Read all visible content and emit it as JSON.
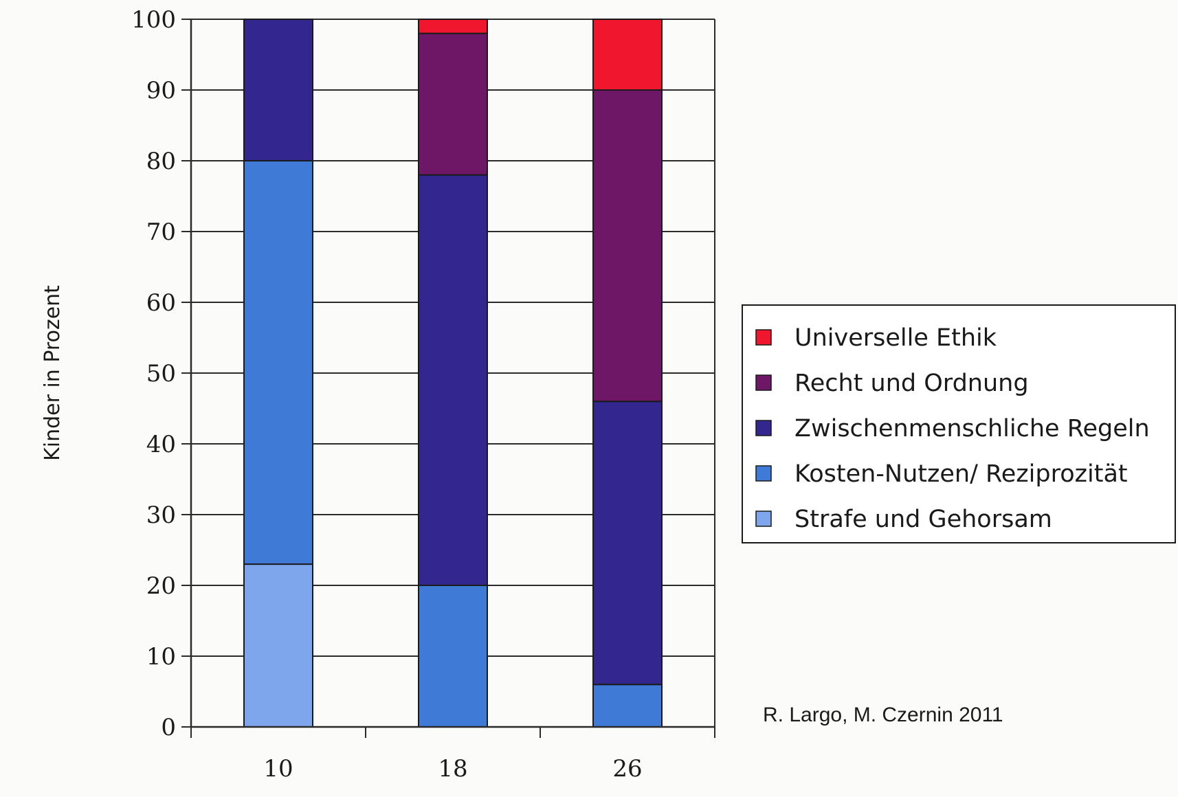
{
  "chart_data": {
    "type": "bar",
    "stacked": true,
    "categories": [
      "10",
      "18",
      "26"
    ],
    "ylabel": "Kinder in Prozent",
    "xlabel": "",
    "ylim": [
      0,
      100
    ],
    "yticks": [
      0,
      10,
      20,
      30,
      40,
      50,
      60,
      70,
      80,
      90,
      100
    ],
    "grid": true,
    "legend_position": "right",
    "series": [
      {
        "name": "Strafe und Gehorsam",
        "color": "#7ea6ec",
        "values": [
          23,
          0,
          0
        ]
      },
      {
        "name": "Kosten-Nutzen/ Reziprozität",
        "color": "#3f7ad6",
        "values": [
          57,
          20,
          6
        ]
      },
      {
        "name": "Zwischenmenschliche Regeln",
        "color": "#33268f",
        "values": [
          20,
          58,
          40
        ]
      },
      {
        "name": "Recht und Ordnung",
        "color": "#6e1766",
        "values": [
          0,
          20,
          44
        ]
      },
      {
        "name": "Universelle Ethik",
        "color": "#f0162e",
        "values": [
          0,
          2,
          10
        ]
      }
    ],
    "annotation": "R. Largo, M. Czernin 2011"
  }
}
